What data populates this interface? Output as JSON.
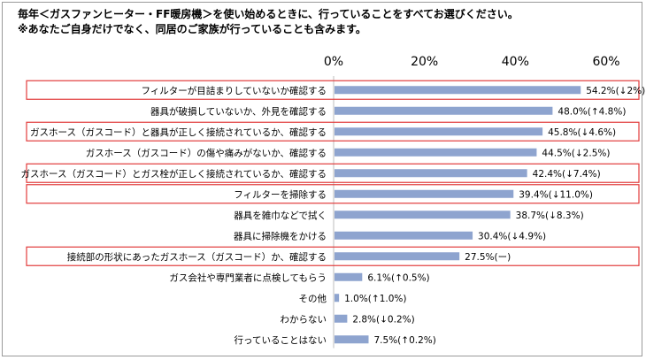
{
  "chart_data": {
    "type": "bar",
    "orientation": "horizontal",
    "title": "毎年＜ガスファンヒーター・FF暖房機＞を使い始めるときに、行っていることをすべてお選びください。",
    "subtitle": "※あなたご自身だけでなく、同居のご家族が行っていることも含みます。",
    "xlim": [
      0,
      60
    ],
    "ticks": [
      "0%",
      "20%",
      "40%",
      "60%"
    ],
    "tick_values": [
      0,
      20,
      40,
      60
    ],
    "categories": [
      "フィルターが目詰まりしていないか確認する",
      "器具が破損していないか、外見を確認する",
      "ガスホース（ガスコード）と器具が正しく接続されているか、確認する",
      "ガスホース（ガスコード）の傷や痛みがないか、確認する",
      "ガスホース（ガスコード）とガス栓が正しく接続されているか、確認する",
      "フィルターを掃除する",
      "器具を雑巾などで拭く",
      "器具に掃除機をかける",
      "接続部の形状にあったガスホース（ガスコード）か、確認する",
      "ガス会社や専門業者に点検してもらう",
      "その他",
      "わからない",
      "行っていることはない"
    ],
    "values": [
      54.2,
      48.0,
      45.8,
      44.5,
      42.4,
      39.4,
      38.7,
      30.4,
      27.5,
      6.1,
      1.0,
      2.8,
      7.5
    ],
    "value_labels": [
      "54.2%(↓2%)",
      "48.0%(↑4.8%)",
      "45.8%(↓4.6%)",
      "44.5%(↓2.5%)",
      "42.4%(↓7.4%)",
      "39.4%(↓11.0%)",
      "38.7%(↓8.3%)",
      "30.4%(↓4.9%)",
      "27.5%(ー)",
      "6.1%(↑0.5%)",
      "1.0%(↑1.0%)",
      "2.8%(↓0.2%)",
      "7.5%(↑0.2%)"
    ],
    "highlighted": [
      true,
      false,
      true,
      false,
      true,
      true,
      false,
      false,
      true,
      false,
      false,
      false,
      false
    ],
    "bar_color": "#8ea4cf",
    "highlight_color": "#e23c3c",
    "grid": false,
    "legend": "none"
  }
}
